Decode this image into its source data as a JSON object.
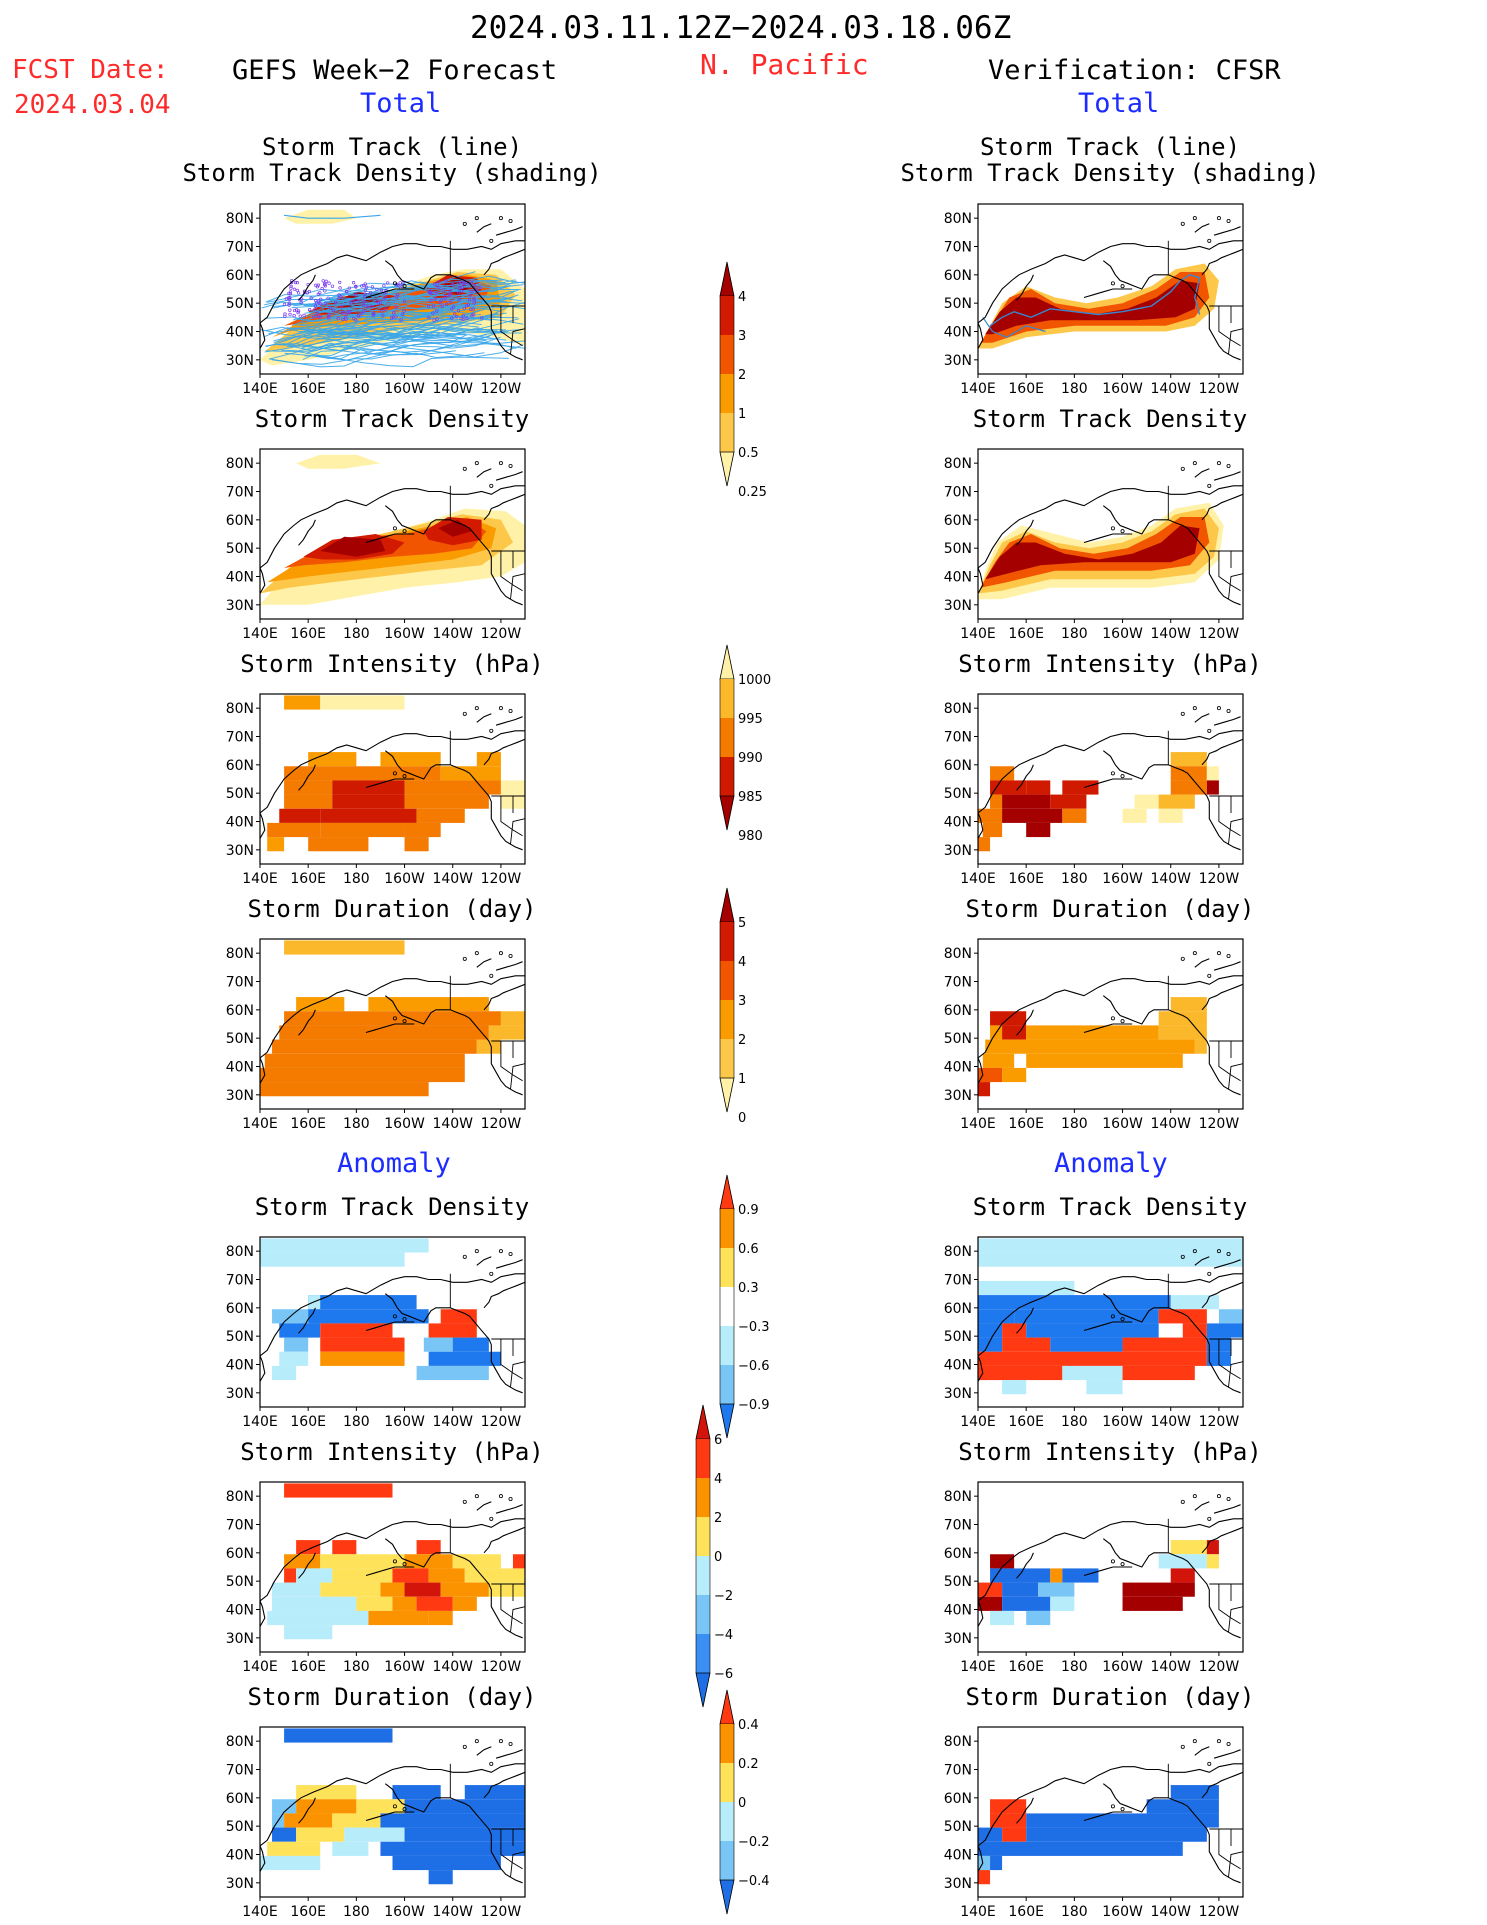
{
  "header": {
    "main_title": "2024.03.11.12Z−2024.03.18.06Z",
    "fcst_label": "FCST Date:",
    "fcst_date": "2024.03.04",
    "region": "N. Pacific",
    "left_title": "GEFS Week−2 Forecast",
    "right_title": "Verification: CFSR",
    "total_label": "Total",
    "anomaly_label": "Anomaly"
  },
  "panel_titles": {
    "track_line": "Storm Track (line)",
    "track_shading": "Storm Track Density (shading)",
    "density": "Storm Track Density",
    "intensity": "Storm Intensity (hPa)",
    "duration": "Storm Duration (day)"
  },
  "axes": {
    "lat_ticks": [
      "80N",
      "70N",
      "60N",
      "50N",
      "40N",
      "30N"
    ],
    "lon_ticks": [
      "140E",
      "160E",
      "180",
      "160W",
      "140W",
      "120W"
    ]
  },
  "colorbars": {
    "density": {
      "ticks": [
        "4",
        "3",
        "2",
        "1",
        "0.5",
        "0.25"
      ],
      "colors": [
        "#a50000",
        "#d21a00",
        "#f25500",
        "#fa9b00",
        "#fdc84a",
        "#fff2a8"
      ]
    },
    "intensity": {
      "ticks": [
        "1000",
        "995",
        "990",
        "985",
        "980"
      ],
      "colors": [
        "#fff2a8",
        "#fbb82a",
        "#f47a00",
        "#d01a00",
        "#a50000"
      ]
    },
    "duration": {
      "ticks": [
        "5",
        "4",
        "3",
        "2",
        "1",
        "0"
      ],
      "colors": [
        "#a50000",
        "#d21a00",
        "#f25500",
        "#fa9b00",
        "#fdc84a",
        "#fff2a8"
      ]
    },
    "anom_density": {
      "ticks": [
        "0.9",
        "0.6",
        "0.3",
        "−0.3",
        "−0.6",
        "−0.9"
      ],
      "colors": [
        "#ff3a12",
        "#fb9300",
        "#fde25a",
        "#ffffff",
        "#b7ecfb",
        "#79c6f6",
        "#1e78ee"
      ]
    },
    "anom_intensity": {
      "ticks": [
        "6",
        "4",
        "2",
        "0",
        "−2",
        "−4",
        "−6"
      ],
      "colors": [
        "#d2140a",
        "#ff3a12",
        "#fb9300",
        "#fde25a",
        "#b7ecfb",
        "#79c6f6",
        "#3c8ff2",
        "#1e6fe6"
      ]
    },
    "anom_duration": {
      "ticks": [
        "0.4",
        "0.2",
        "0",
        "−0.2",
        "−0.4"
      ],
      "colors": [
        "#ff3a12",
        "#fb9300",
        "#fde25a",
        "#b7ecfb",
        "#79c6f6",
        "#1e6fe6"
      ]
    }
  },
  "colors": {
    "track_line": "#3aa6e8",
    "track_points": "#7a3cf0",
    "coast": "#000000"
  },
  "chart_data": [
    {
      "type": "heatmap",
      "panel": "forecast-total-track",
      "field": "track density + tracks",
      "lat_range": [
        25,
        85
      ],
      "lon_range": [
        140,
        250
      ]
    },
    {
      "type": "heatmap",
      "panel": "verification-total-track",
      "field": "track density + tracks",
      "lat_range": [
        25,
        85
      ],
      "lon_range": [
        140,
        250
      ]
    },
    {
      "type": "heatmap",
      "panel": "forecast-total-density",
      "field": "density",
      "lat_range": [
        25,
        85
      ],
      "lon_range": [
        140,
        250
      ]
    },
    {
      "type": "heatmap",
      "panel": "verification-total-density",
      "field": "density",
      "lat_range": [
        25,
        85
      ],
      "lon_range": [
        140,
        250
      ]
    },
    {
      "type": "heatmap",
      "panel": "forecast-total-intensity",
      "field": "intensity",
      "lat_range": [
        25,
        85
      ],
      "lon_range": [
        140,
        250
      ]
    },
    {
      "type": "heatmap",
      "panel": "verification-total-intensity",
      "field": "intensity",
      "lat_range": [
        25,
        85
      ],
      "lon_range": [
        140,
        250
      ]
    },
    {
      "type": "heatmap",
      "panel": "forecast-total-duration",
      "field": "duration",
      "lat_range": [
        25,
        85
      ],
      "lon_range": [
        140,
        250
      ]
    },
    {
      "type": "heatmap",
      "panel": "verification-total-duration",
      "field": "duration",
      "lat_range": [
        25,
        85
      ],
      "lon_range": [
        140,
        250
      ]
    },
    {
      "type": "heatmap",
      "panel": "forecast-anomaly-density",
      "field": "anomaly density",
      "lat_range": [
        25,
        85
      ],
      "lon_range": [
        140,
        250
      ]
    },
    {
      "type": "heatmap",
      "panel": "verification-anomaly-density",
      "field": "anomaly density",
      "lat_range": [
        25,
        85
      ],
      "lon_range": [
        140,
        250
      ]
    },
    {
      "type": "heatmap",
      "panel": "forecast-anomaly-intensity",
      "field": "anomaly intensity",
      "lat_range": [
        25,
        85
      ],
      "lon_range": [
        140,
        250
      ]
    },
    {
      "type": "heatmap",
      "panel": "verification-anomaly-intensity",
      "field": "anomaly intensity",
      "lat_range": [
        25,
        85
      ],
      "lon_range": [
        140,
        250
      ]
    },
    {
      "type": "heatmap",
      "panel": "forecast-anomaly-duration",
      "field": "anomaly duration",
      "lat_range": [
        25,
        85
      ],
      "lon_range": [
        140,
        250
      ]
    },
    {
      "type": "heatmap",
      "panel": "verification-anomaly-duration",
      "field": "anomaly duration",
      "lat_range": [
        25,
        85
      ],
      "lon_range": [
        140,
        250
      ]
    }
  ]
}
